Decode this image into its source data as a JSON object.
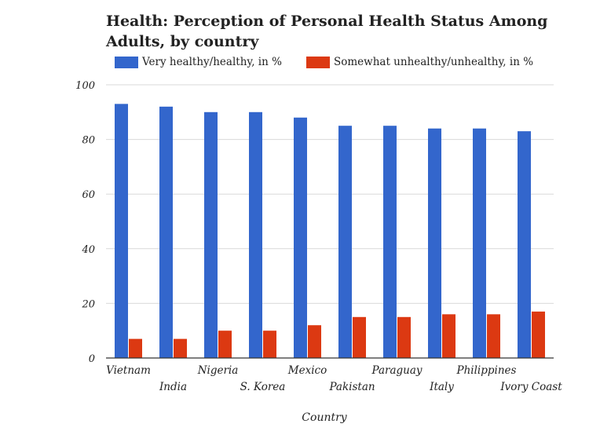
{
  "chart_data": {
    "type": "bar",
    "title": "Health: Perception of Personal Health Status Among Adults, by country",
    "title_lines": [
      "Health: Perception of Personal Health Status Among",
      "Adults, by country"
    ],
    "xlabel": "Country",
    "ylabel": "",
    "ylim": [
      0,
      100
    ],
    "yticks": [
      0,
      20,
      40,
      60,
      80,
      100
    ],
    "grid": true,
    "legend_position": "top",
    "categories": [
      "Vietnam",
      "India",
      "Nigeria",
      "S. Korea",
      "Mexico",
      "Pakistan",
      "Paraguay",
      "Italy",
      "Philippines",
      "Ivory Coast"
    ],
    "series": [
      {
        "name": "Very healthy/healthy, in %",
        "color": "#3366cc",
        "values": [
          93,
          92,
          90,
          90,
          88,
          85,
          85,
          84,
          84,
          83
        ]
      },
      {
        "name": "Somewhat unhealthy/unhealthy, in %",
        "color": "#dc3912",
        "values": [
          7,
          7,
          10,
          10,
          12,
          15,
          15,
          16,
          16,
          17
        ]
      }
    ]
  }
}
